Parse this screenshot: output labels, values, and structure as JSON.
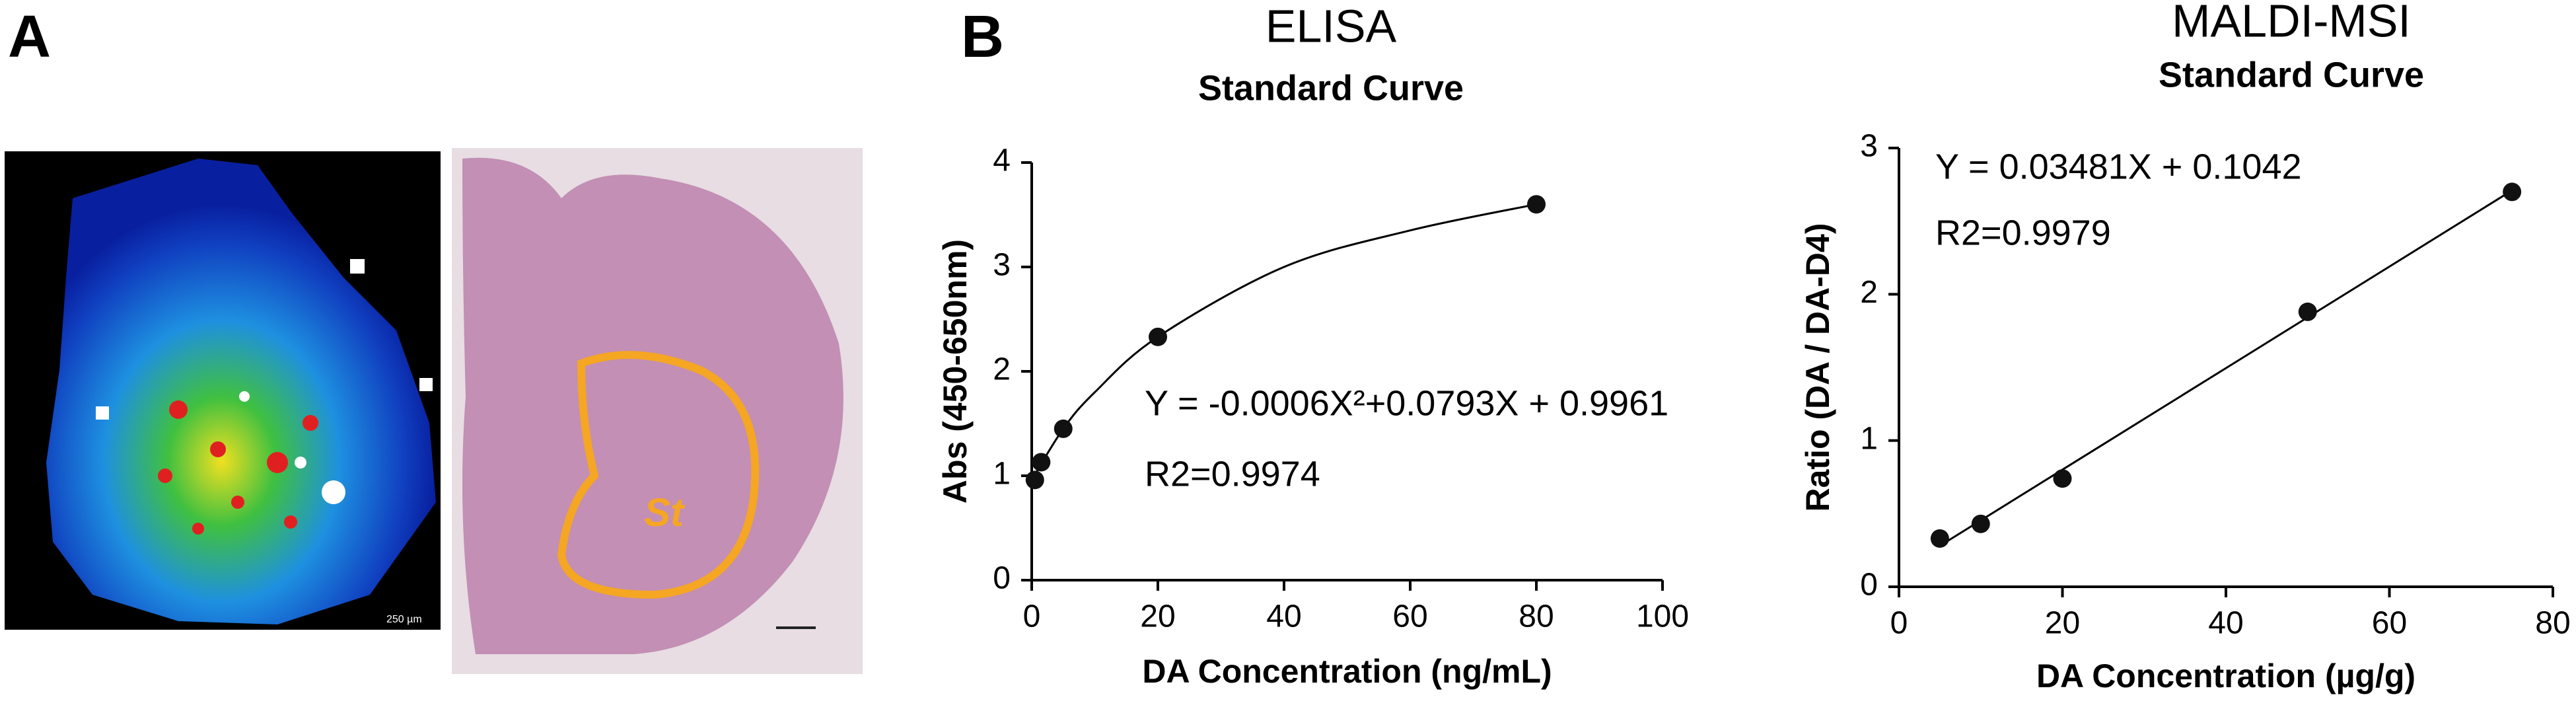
{
  "figure": {
    "panel_labels": [
      "A",
      "B"
    ],
    "scale_bar": "250 µm",
    "region_label": "St"
  },
  "chart_data": [
    {
      "type": "scatter",
      "title": "ELISA",
      "subtitle": "Standard Curve",
      "x_label": "DA Concentration (ng/mL)",
      "y_label": "Abs (450-650nm)",
      "annotations": [
        "Y = -0.0006X²+0.0793X + 0.9961",
        "R2=0.9974"
      ],
      "x": [
        0.5,
        1.5,
        5,
        20,
        80
      ],
      "values": [
        0.96,
        1.13,
        1.45,
        2.33,
        3.6
      ],
      "color": "#111111",
      "curve": {
        "x": [
          0,
          5,
          10,
          20,
          40,
          60,
          80
        ],
        "values": [
          0.96,
          1.45,
          1.8,
          2.33,
          3.0,
          3.35,
          3.6
        ]
      },
      "xlim": [
        0,
        100
      ],
      "xticks": [
        0,
        20,
        40,
        60,
        80,
        100
      ],
      "ylim": [
        0,
        4
      ],
      "yticks": [
        0,
        1,
        2,
        3,
        4
      ]
    },
    {
      "type": "scatter",
      "title": "MALDI-MSI",
      "subtitle": "Standard Curve",
      "x_label": "DA Concentration  (µg/g)",
      "y_label": "Ratio (DA / DA-D4)",
      "annotations": [
        "Y = 0.03481X + 0.1042",
        "R2=0.9979"
      ],
      "x": [
        5,
        10,
        20,
        50,
        75
      ],
      "values": [
        0.33,
        0.43,
        0.74,
        1.88,
        2.7
      ],
      "color": "#111111",
      "curve": {
        "x": [
          5,
          75
        ],
        "values": [
          0.28,
          2.71
        ]
      },
      "xlim": [
        0,
        80
      ],
      "xticks": [
        0,
        20,
        40,
        60,
        80
      ],
      "ylim": [
        0,
        3
      ],
      "yticks": [
        0,
        1,
        2,
        3
      ]
    }
  ]
}
